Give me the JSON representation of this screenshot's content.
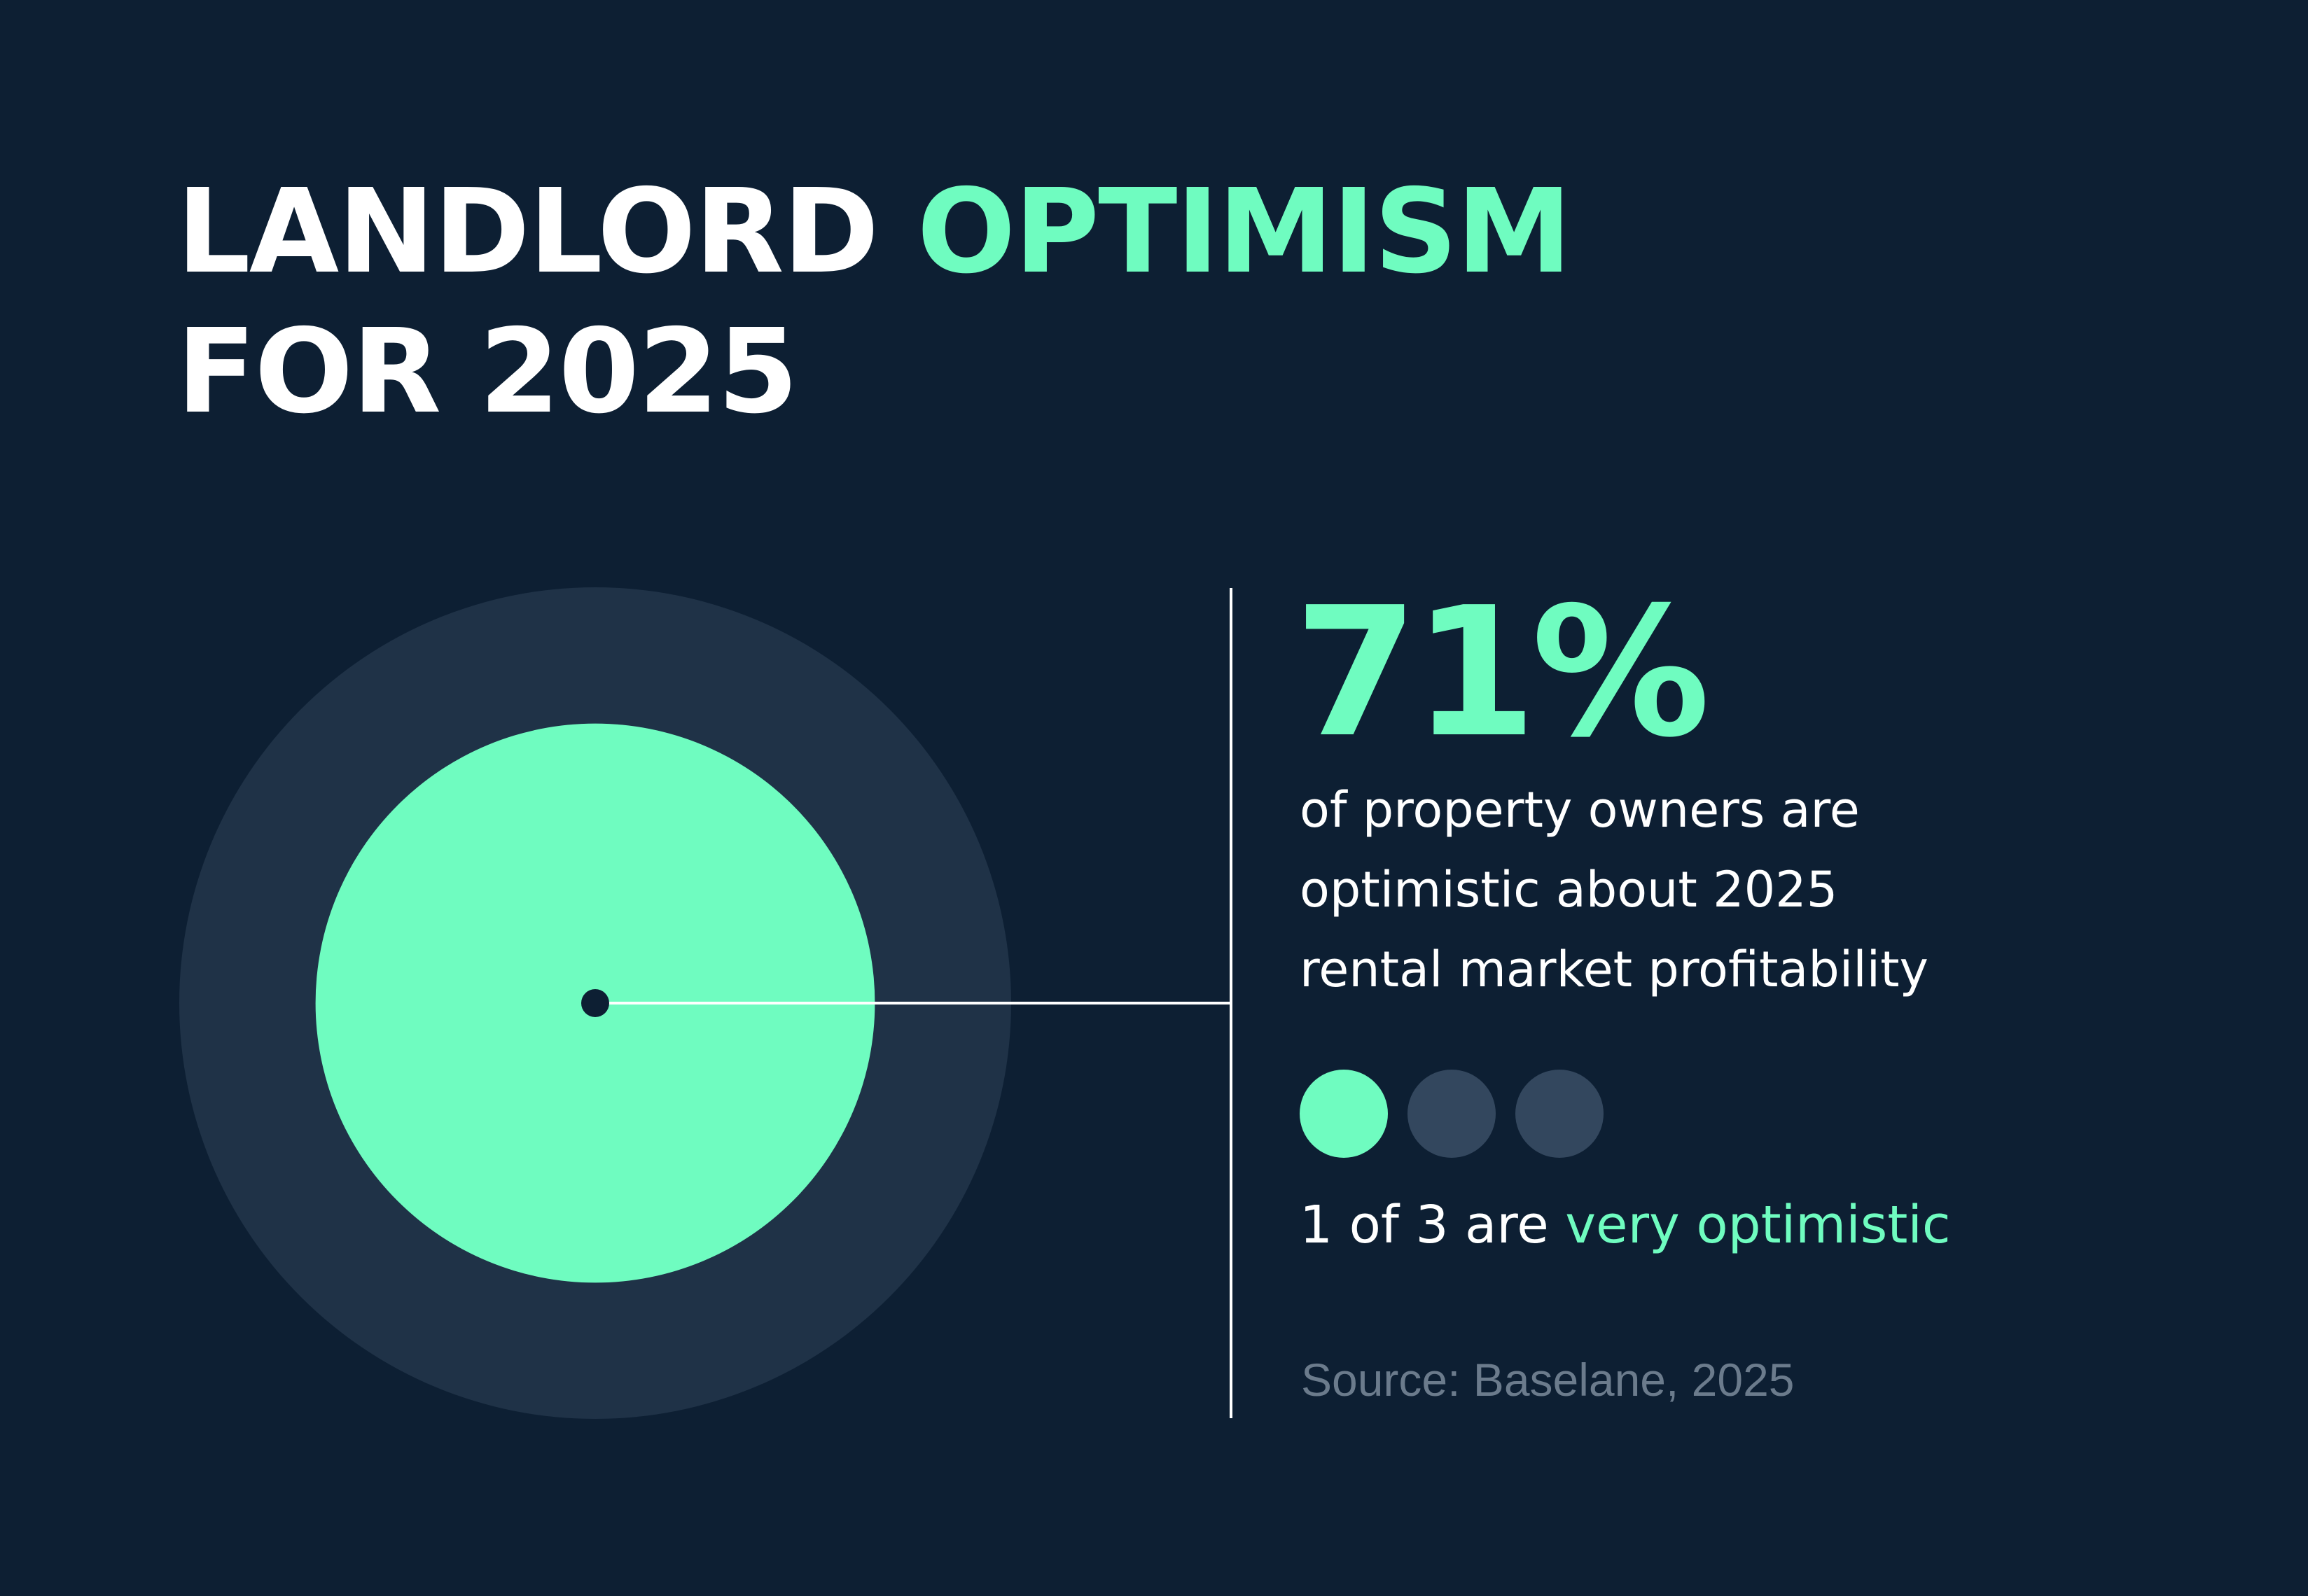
{
  "colors": {
    "background": "#0d1f33",
    "accent": "#6ffcc0",
    "outer_circle": "#1f3247",
    "dot_inactive": "#33475e",
    "text": "#ffffff",
    "source_text": "#6b7b8c"
  },
  "title": {
    "line1_white": "LANDLORD",
    "line1_accent": "OPTIMISM",
    "line2": "FOR 2025"
  },
  "chart_data": {
    "type": "area",
    "title": "LANDLORD OPTIMISM FOR 2025",
    "values": [
      71
    ],
    "total": 100
  },
  "stat": {
    "value": "71%",
    "description_lines": [
      "of property owners are",
      "optimistic about 2025",
      "rental market profitability"
    ]
  },
  "ratio": {
    "filled": 1,
    "total": 3,
    "prefix": "1 of 3 are",
    "accent": "very optimistic"
  },
  "source": "Source: Baselane, 2025"
}
